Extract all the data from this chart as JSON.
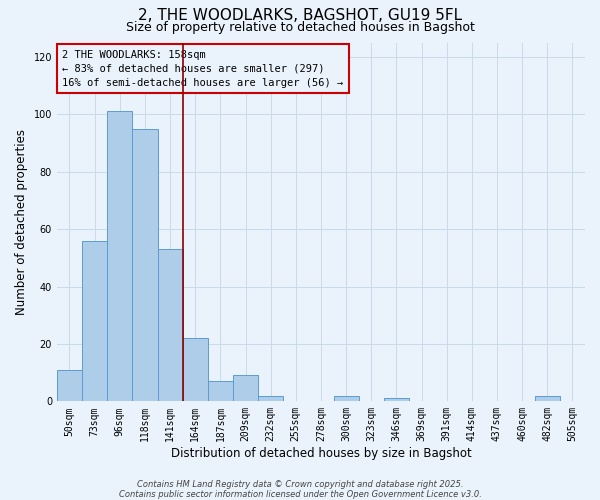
{
  "title": "2, THE WOODLARKS, BAGSHOT, GU19 5FL",
  "subtitle": "Size of property relative to detached houses in Bagshot",
  "xlabel": "Distribution of detached houses by size in Bagshot",
  "ylabel": "Number of detached properties",
  "bar_labels": [
    "50sqm",
    "73sqm",
    "96sqm",
    "118sqm",
    "141sqm",
    "164sqm",
    "187sqm",
    "209sqm",
    "232sqm",
    "255sqm",
    "278sqm",
    "300sqm",
    "323sqm",
    "346sqm",
    "369sqm",
    "391sqm",
    "414sqm",
    "437sqm",
    "460sqm",
    "482sqm",
    "505sqm"
  ],
  "bar_values": [
    11,
    56,
    101,
    95,
    53,
    22,
    7,
    9,
    2,
    0,
    0,
    2,
    0,
    1,
    0,
    0,
    0,
    0,
    0,
    2,
    0
  ],
  "bar_color": "#aecde8",
  "bar_edge_color": "#5b9bd5",
  "background_color": "#eaf3fb",
  "grid_color": "#c8daea",
  "vline_x": 4.5,
  "vline_color": "#8b0000",
  "annotation_lines": [
    "2 THE WOODLARKS: 158sqm",
    "← 83% of detached houses are smaller (297)",
    "16% of semi-detached houses are larger (56) →"
  ],
  "ylim": [
    0,
    125
  ],
  "yticks": [
    0,
    20,
    40,
    60,
    80,
    100,
    120
  ],
  "footer_line1": "Contains HM Land Registry data © Crown copyright and database right 2025.",
  "footer_line2": "Contains public sector information licensed under the Open Government Licence v3.0.",
  "title_fontsize": 11,
  "subtitle_fontsize": 9,
  "axis_label_fontsize": 8.5,
  "tick_fontsize": 7,
  "annotation_fontsize": 7.5,
  "footer_fontsize": 6
}
